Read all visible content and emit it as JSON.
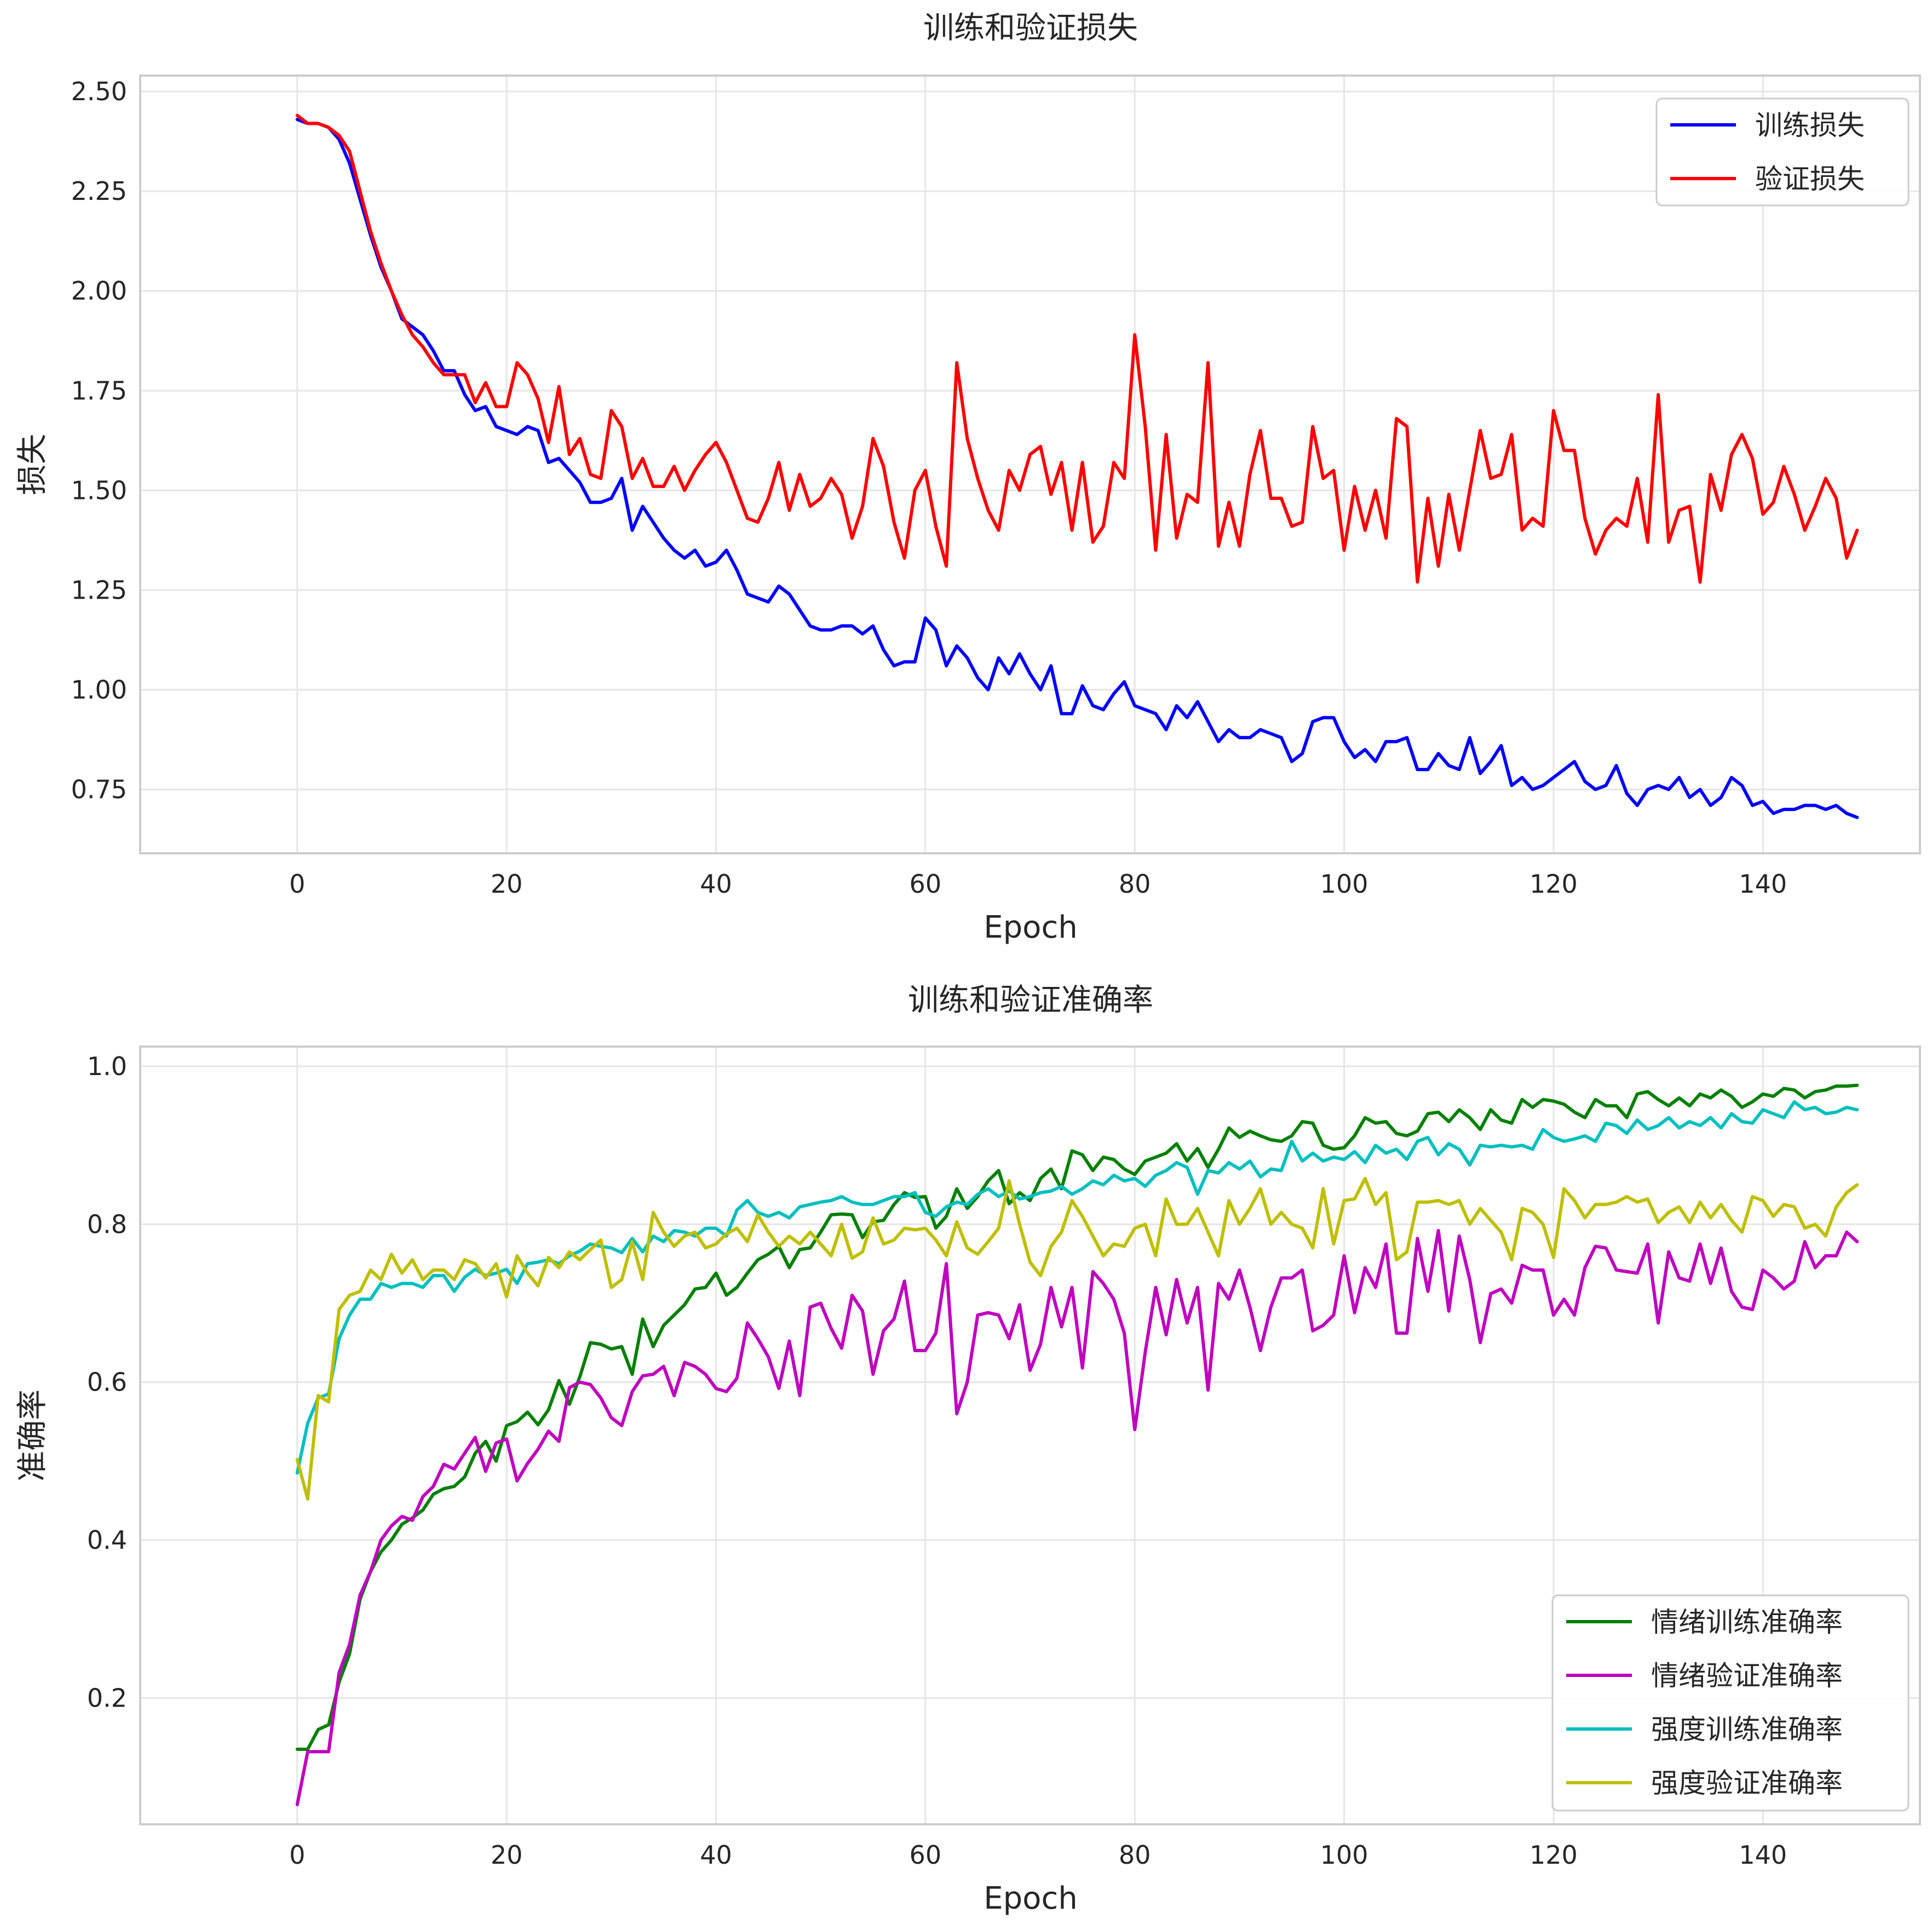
{
  "chart_data": [
    {
      "type": "line",
      "title": "训练和验证损失",
      "xlabel": "Epoch",
      "ylabel": "损失",
      "xlim": [
        -15,
        155
      ],
      "ylim": [
        0.59,
        2.54
      ],
      "xticks": [
        0,
        20,
        40,
        60,
        80,
        100,
        120,
        140
      ],
      "yticks": [
        0.75,
        1.0,
        1.25,
        1.5,
        1.75,
        2.0,
        2.25,
        2.5
      ],
      "ytick_labels": [
        "0.75",
        "1.00",
        "1.25",
        "1.50",
        "1.75",
        "2.00",
        "2.25",
        "2.50"
      ],
      "grid": true,
      "legend": "upper-right",
      "series": [
        {
          "name": "训练损失",
          "color": "#0000ff",
          "values": [
            2.43,
            2.42,
            2.42,
            2.41,
            2.38,
            2.32,
            2.23,
            2.14,
            2.06,
            2.0,
            1.93,
            1.91,
            1.89,
            1.85,
            1.8,
            1.8,
            1.74,
            1.7,
            1.71,
            1.66,
            1.65,
            1.64,
            1.66,
            1.65,
            1.57,
            1.58,
            1.55,
            1.52,
            1.47,
            1.47,
            1.48,
            1.53,
            1.4,
            1.46,
            1.42,
            1.38,
            1.35,
            1.33,
            1.35,
            1.31,
            1.32,
            1.35,
            1.3,
            1.24,
            1.23,
            1.22,
            1.26,
            1.24,
            1.2,
            1.16,
            1.15,
            1.15,
            1.16,
            1.16,
            1.14,
            1.16,
            1.1,
            1.06,
            1.07,
            1.07,
            1.18,
            1.15,
            1.06,
            1.11,
            1.08,
            1.03,
            1.0,
            1.08,
            1.04,
            1.09,
            1.04,
            1.0,
            1.06,
            0.94,
            0.94,
            1.01,
            0.96,
            0.95,
            0.99,
            1.02,
            0.96,
            0.95,
            0.94,
            0.9,
            0.96,
            0.93,
            0.97,
            0.92,
            0.87,
            0.9,
            0.88,
            0.88,
            0.9,
            0.89,
            0.88,
            0.82,
            0.84,
            0.92,
            0.93,
            0.93,
            0.87,
            0.83,
            0.85,
            0.82,
            0.87,
            0.87,
            0.88,
            0.8,
            0.8,
            0.84,
            0.81,
            0.8,
            0.88,
            0.79,
            0.82,
            0.86,
            0.76,
            0.78,
            0.75,
            0.76,
            0.78,
            0.8,
            0.82,
            0.77,
            0.75,
            0.76,
            0.81,
            0.74,
            0.71,
            0.75,
            0.76,
            0.75,
            0.78,
            0.73,
            0.75,
            0.71,
            0.73,
            0.78,
            0.76,
            0.71,
            0.72,
            0.69,
            0.7,
            0.7,
            0.71,
            0.71,
            0.7,
            0.71,
            0.69,
            0.68
          ]
        },
        {
          "name": "验证损失",
          "color": "#ff0000",
          "values": [
            2.44,
            2.42,
            2.42,
            2.41,
            2.39,
            2.35,
            2.25,
            2.15,
            2.07,
            2.0,
            1.94,
            1.89,
            1.86,
            1.82,
            1.79,
            1.79,
            1.79,
            1.72,
            1.77,
            1.71,
            1.71,
            1.82,
            1.79,
            1.73,
            1.62,
            1.76,
            1.59,
            1.63,
            1.54,
            1.53,
            1.7,
            1.66,
            1.53,
            1.58,
            1.51,
            1.51,
            1.56,
            1.5,
            1.55,
            1.59,
            1.62,
            1.57,
            1.5,
            1.43,
            1.42,
            1.48,
            1.57,
            1.45,
            1.54,
            1.46,
            1.48,
            1.53,
            1.49,
            1.38,
            1.46,
            1.63,
            1.56,
            1.42,
            1.33,
            1.5,
            1.55,
            1.41,
            1.31,
            1.82,
            1.63,
            1.53,
            1.45,
            1.4,
            1.55,
            1.5,
            1.59,
            1.61,
            1.49,
            1.57,
            1.4,
            1.57,
            1.37,
            1.41,
            1.57,
            1.53,
            1.89,
            1.66,
            1.35,
            1.64,
            1.38,
            1.49,
            1.47,
            1.82,
            1.36,
            1.47,
            1.36,
            1.54,
            1.65,
            1.48,
            1.48,
            1.41,
            1.42,
            1.66,
            1.53,
            1.55,
            1.35,
            1.51,
            1.4,
            1.5,
            1.38,
            1.68,
            1.66,
            1.27,
            1.48,
            1.31,
            1.49,
            1.35,
            1.5,
            1.65,
            1.53,
            1.54,
            1.64,
            1.4,
            1.43,
            1.41,
            1.7,
            1.6,
            1.6,
            1.43,
            1.34,
            1.4,
            1.43,
            1.41,
            1.53,
            1.37,
            1.74,
            1.37,
            1.45,
            1.46,
            1.27,
            1.54,
            1.45,
            1.59,
            1.64,
            1.58,
            1.44,
            1.47,
            1.56,
            1.49,
            1.4,
            1.46,
            1.53,
            1.48,
            1.33,
            1.4
          ]
        }
      ]
    },
    {
      "type": "line",
      "title": "训练和验证准确率",
      "xlabel": "Epoch",
      "ylabel": "准确率",
      "xlim": [
        -15,
        155
      ],
      "ylim": [
        0.04,
        1.025
      ],
      "xticks": [
        0,
        20,
        40,
        60,
        80,
        100,
        120,
        140
      ],
      "yticks": [
        0.2,
        0.4,
        0.6,
        0.8,
        1.0
      ],
      "ytick_labels": [
        "0.2",
        "0.4",
        "0.6",
        "0.8",
        "1.0"
      ],
      "grid": true,
      "legend": "lower-right",
      "series": [
        {
          "name": "情绪训练准确率",
          "color": "#008000",
          "values": [
            0.135,
            0.135,
            0.16,
            0.166,
            0.22,
            0.256,
            0.325,
            0.36,
            0.385,
            0.4,
            0.42,
            0.428,
            0.438,
            0.458,
            0.465,
            0.468,
            0.48,
            0.51,
            0.525,
            0.5,
            0.545,
            0.55,
            0.562,
            0.546,
            0.565,
            0.602,
            0.572,
            0.607,
            0.65,
            0.648,
            0.642,
            0.645,
            0.61,
            0.68,
            0.645,
            0.672,
            0.685,
            0.698,
            0.718,
            0.72,
            0.738,
            0.71,
            0.72,
            0.738,
            0.755,
            0.762,
            0.772,
            0.745,
            0.768,
            0.77,
            0.79,
            0.812,
            0.813,
            0.812,
            0.783,
            0.803,
            0.805,
            0.825,
            0.84,
            0.834,
            0.835,
            0.795,
            0.81,
            0.845,
            0.82,
            0.835,
            0.855,
            0.868,
            0.826,
            0.84,
            0.83,
            0.858,
            0.87,
            0.845,
            0.893,
            0.888,
            0.868,
            0.885,
            0.882,
            0.87,
            0.863,
            0.88,
            0.885,
            0.89,
            0.902,
            0.88,
            0.896,
            0.872,
            0.895,
            0.922,
            0.91,
            0.918,
            0.912,
            0.907,
            0.905,
            0.912,
            0.93,
            0.928,
            0.9,
            0.895,
            0.897,
            0.912,
            0.935,
            0.928,
            0.93,
            0.915,
            0.912,
            0.918,
            0.94,
            0.942,
            0.93,
            0.945,
            0.935,
            0.92,
            0.945,
            0.932,
            0.928,
            0.958,
            0.948,
            0.958,
            0.956,
            0.952,
            0.942,
            0.935,
            0.958,
            0.95,
            0.95,
            0.935,
            0.965,
            0.968,
            0.958,
            0.95,
            0.96,
            0.95,
            0.965,
            0.96,
            0.97,
            0.962,
            0.948,
            0.955,
            0.965,
            0.962,
            0.972,
            0.97,
            0.96,
            0.968,
            0.97,
            0.975,
            0.975,
            0.976
          ]
        },
        {
          "name": "情绪验证准确率",
          "color": "#bf00bf",
          "values": [
            0.065,
            0.132,
            0.132,
            0.132,
            0.232,
            0.268,
            0.33,
            0.36,
            0.4,
            0.418,
            0.43,
            0.425,
            0.455,
            0.468,
            0.496,
            0.49,
            0.51,
            0.53,
            0.487,
            0.523,
            0.528,
            0.475,
            0.497,
            0.515,
            0.538,
            0.525,
            0.593,
            0.6,
            0.597,
            0.58,
            0.555,
            0.545,
            0.588,
            0.608,
            0.61,
            0.62,
            0.583,
            0.625,
            0.62,
            0.61,
            0.592,
            0.588,
            0.605,
            0.675,
            0.655,
            0.632,
            0.592,
            0.652,
            0.583,
            0.695,
            0.7,
            0.668,
            0.643,
            0.71,
            0.69,
            0.61,
            0.665,
            0.68,
            0.728,
            0.64,
            0.64,
            0.662,
            0.75,
            0.56,
            0.6,
            0.685,
            0.688,
            0.685,
            0.655,
            0.698,
            0.615,
            0.648,
            0.72,
            0.67,
            0.72,
            0.618,
            0.74,
            0.725,
            0.705,
            0.662,
            0.54,
            0.638,
            0.72,
            0.66,
            0.73,
            0.675,
            0.72,
            0.59,
            0.725,
            0.705,
            0.742,
            0.695,
            0.64,
            0.695,
            0.732,
            0.732,
            0.742,
            0.665,
            0.672,
            0.685,
            0.76,
            0.688,
            0.745,
            0.72,
            0.775,
            0.662,
            0.662,
            0.782,
            0.715,
            0.792,
            0.69,
            0.785,
            0.73,
            0.65,
            0.712,
            0.718,
            0.7,
            0.748,
            0.742,
            0.742,
            0.685,
            0.705,
            0.685,
            0.745,
            0.772,
            0.77,
            0.742,
            0.74,
            0.738,
            0.775,
            0.675,
            0.765,
            0.732,
            0.728,
            0.775,
            0.725,
            0.77,
            0.715,
            0.695,
            0.692,
            0.742,
            0.732,
            0.718,
            0.728,
            0.778,
            0.745,
            0.76,
            0.76,
            0.79,
            0.778
          ]
        },
        {
          "name": "强度训练准确率",
          "color": "#00bfbf",
          "values": [
            0.485,
            0.548,
            0.58,
            0.585,
            0.655,
            0.685,
            0.705,
            0.705,
            0.725,
            0.72,
            0.725,
            0.725,
            0.72,
            0.735,
            0.735,
            0.715,
            0.733,
            0.743,
            0.735,
            0.738,
            0.743,
            0.725,
            0.75,
            0.752,
            0.755,
            0.75,
            0.76,
            0.766,
            0.775,
            0.772,
            0.77,
            0.764,
            0.782,
            0.765,
            0.785,
            0.778,
            0.792,
            0.79,
            0.785,
            0.795,
            0.795,
            0.785,
            0.818,
            0.83,
            0.815,
            0.81,
            0.815,
            0.808,
            0.822,
            0.825,
            0.828,
            0.83,
            0.835,
            0.828,
            0.825,
            0.825,
            0.83,
            0.835,
            0.835,
            0.84,
            0.815,
            0.81,
            0.822,
            0.828,
            0.825,
            0.838,
            0.845,
            0.835,
            0.842,
            0.832,
            0.835,
            0.84,
            0.842,
            0.848,
            0.838,
            0.845,
            0.855,
            0.85,
            0.862,
            0.855,
            0.858,
            0.848,
            0.862,
            0.868,
            0.878,
            0.872,
            0.838,
            0.868,
            0.865,
            0.878,
            0.87,
            0.88,
            0.86,
            0.87,
            0.868,
            0.905,
            0.88,
            0.89,
            0.88,
            0.885,
            0.882,
            0.892,
            0.878,
            0.9,
            0.89,
            0.895,
            0.882,
            0.905,
            0.91,
            0.888,
            0.902,
            0.895,
            0.875,
            0.9,
            0.898,
            0.9,
            0.898,
            0.9,
            0.895,
            0.92,
            0.91,
            0.905,
            0.908,
            0.912,
            0.905,
            0.928,
            0.925,
            0.915,
            0.932,
            0.92,
            0.925,
            0.935,
            0.922,
            0.93,
            0.925,
            0.935,
            0.922,
            0.94,
            0.93,
            0.928,
            0.945,
            0.94,
            0.935,
            0.955,
            0.945,
            0.948,
            0.94,
            0.942,
            0.948,
            0.945
          ]
        },
        {
          "name": "强度验证准确率",
          "color": "#bfbf00",
          "values": [
            0.502,
            0.452,
            0.583,
            0.575,
            0.692,
            0.71,
            0.715,
            0.742,
            0.73,
            0.762,
            0.738,
            0.755,
            0.73,
            0.742,
            0.742,
            0.73,
            0.755,
            0.75,
            0.732,
            0.75,
            0.708,
            0.76,
            0.738,
            0.722,
            0.758,
            0.745,
            0.765,
            0.755,
            0.768,
            0.78,
            0.72,
            0.73,
            0.778,
            0.73,
            0.815,
            0.79,
            0.772,
            0.785,
            0.79,
            0.77,
            0.775,
            0.788,
            0.795,
            0.778,
            0.812,
            0.79,
            0.772,
            0.785,
            0.775,
            0.79,
            0.775,
            0.76,
            0.8,
            0.757,
            0.765,
            0.808,
            0.775,
            0.78,
            0.795,
            0.793,
            0.795,
            0.78,
            0.76,
            0.803,
            0.77,
            0.762,
            0.778,
            0.795,
            0.855,
            0.8,
            0.752,
            0.735,
            0.772,
            0.79,
            0.83,
            0.81,
            0.785,
            0.76,
            0.775,
            0.772,
            0.795,
            0.8,
            0.76,
            0.832,
            0.8,
            0.8,
            0.82,
            0.79,
            0.76,
            0.83,
            0.8,
            0.82,
            0.845,
            0.8,
            0.815,
            0.8,
            0.795,
            0.77,
            0.845,
            0.775,
            0.83,
            0.832,
            0.858,
            0.825,
            0.84,
            0.755,
            0.765,
            0.828,
            0.828,
            0.83,
            0.825,
            0.83,
            0.8,
            0.82,
            0.805,
            0.79,
            0.755,
            0.82,
            0.815,
            0.8,
            0.758,
            0.845,
            0.83,
            0.808,
            0.825,
            0.825,
            0.828,
            0.835,
            0.828,
            0.832,
            0.802,
            0.815,
            0.822,
            0.802,
            0.828,
            0.808,
            0.825,
            0.805,
            0.79,
            0.835,
            0.83,
            0.81,
            0.825,
            0.822,
            0.795,
            0.8,
            0.785,
            0.822,
            0.84,
            0.85
          ]
        }
      ]
    }
  ]
}
